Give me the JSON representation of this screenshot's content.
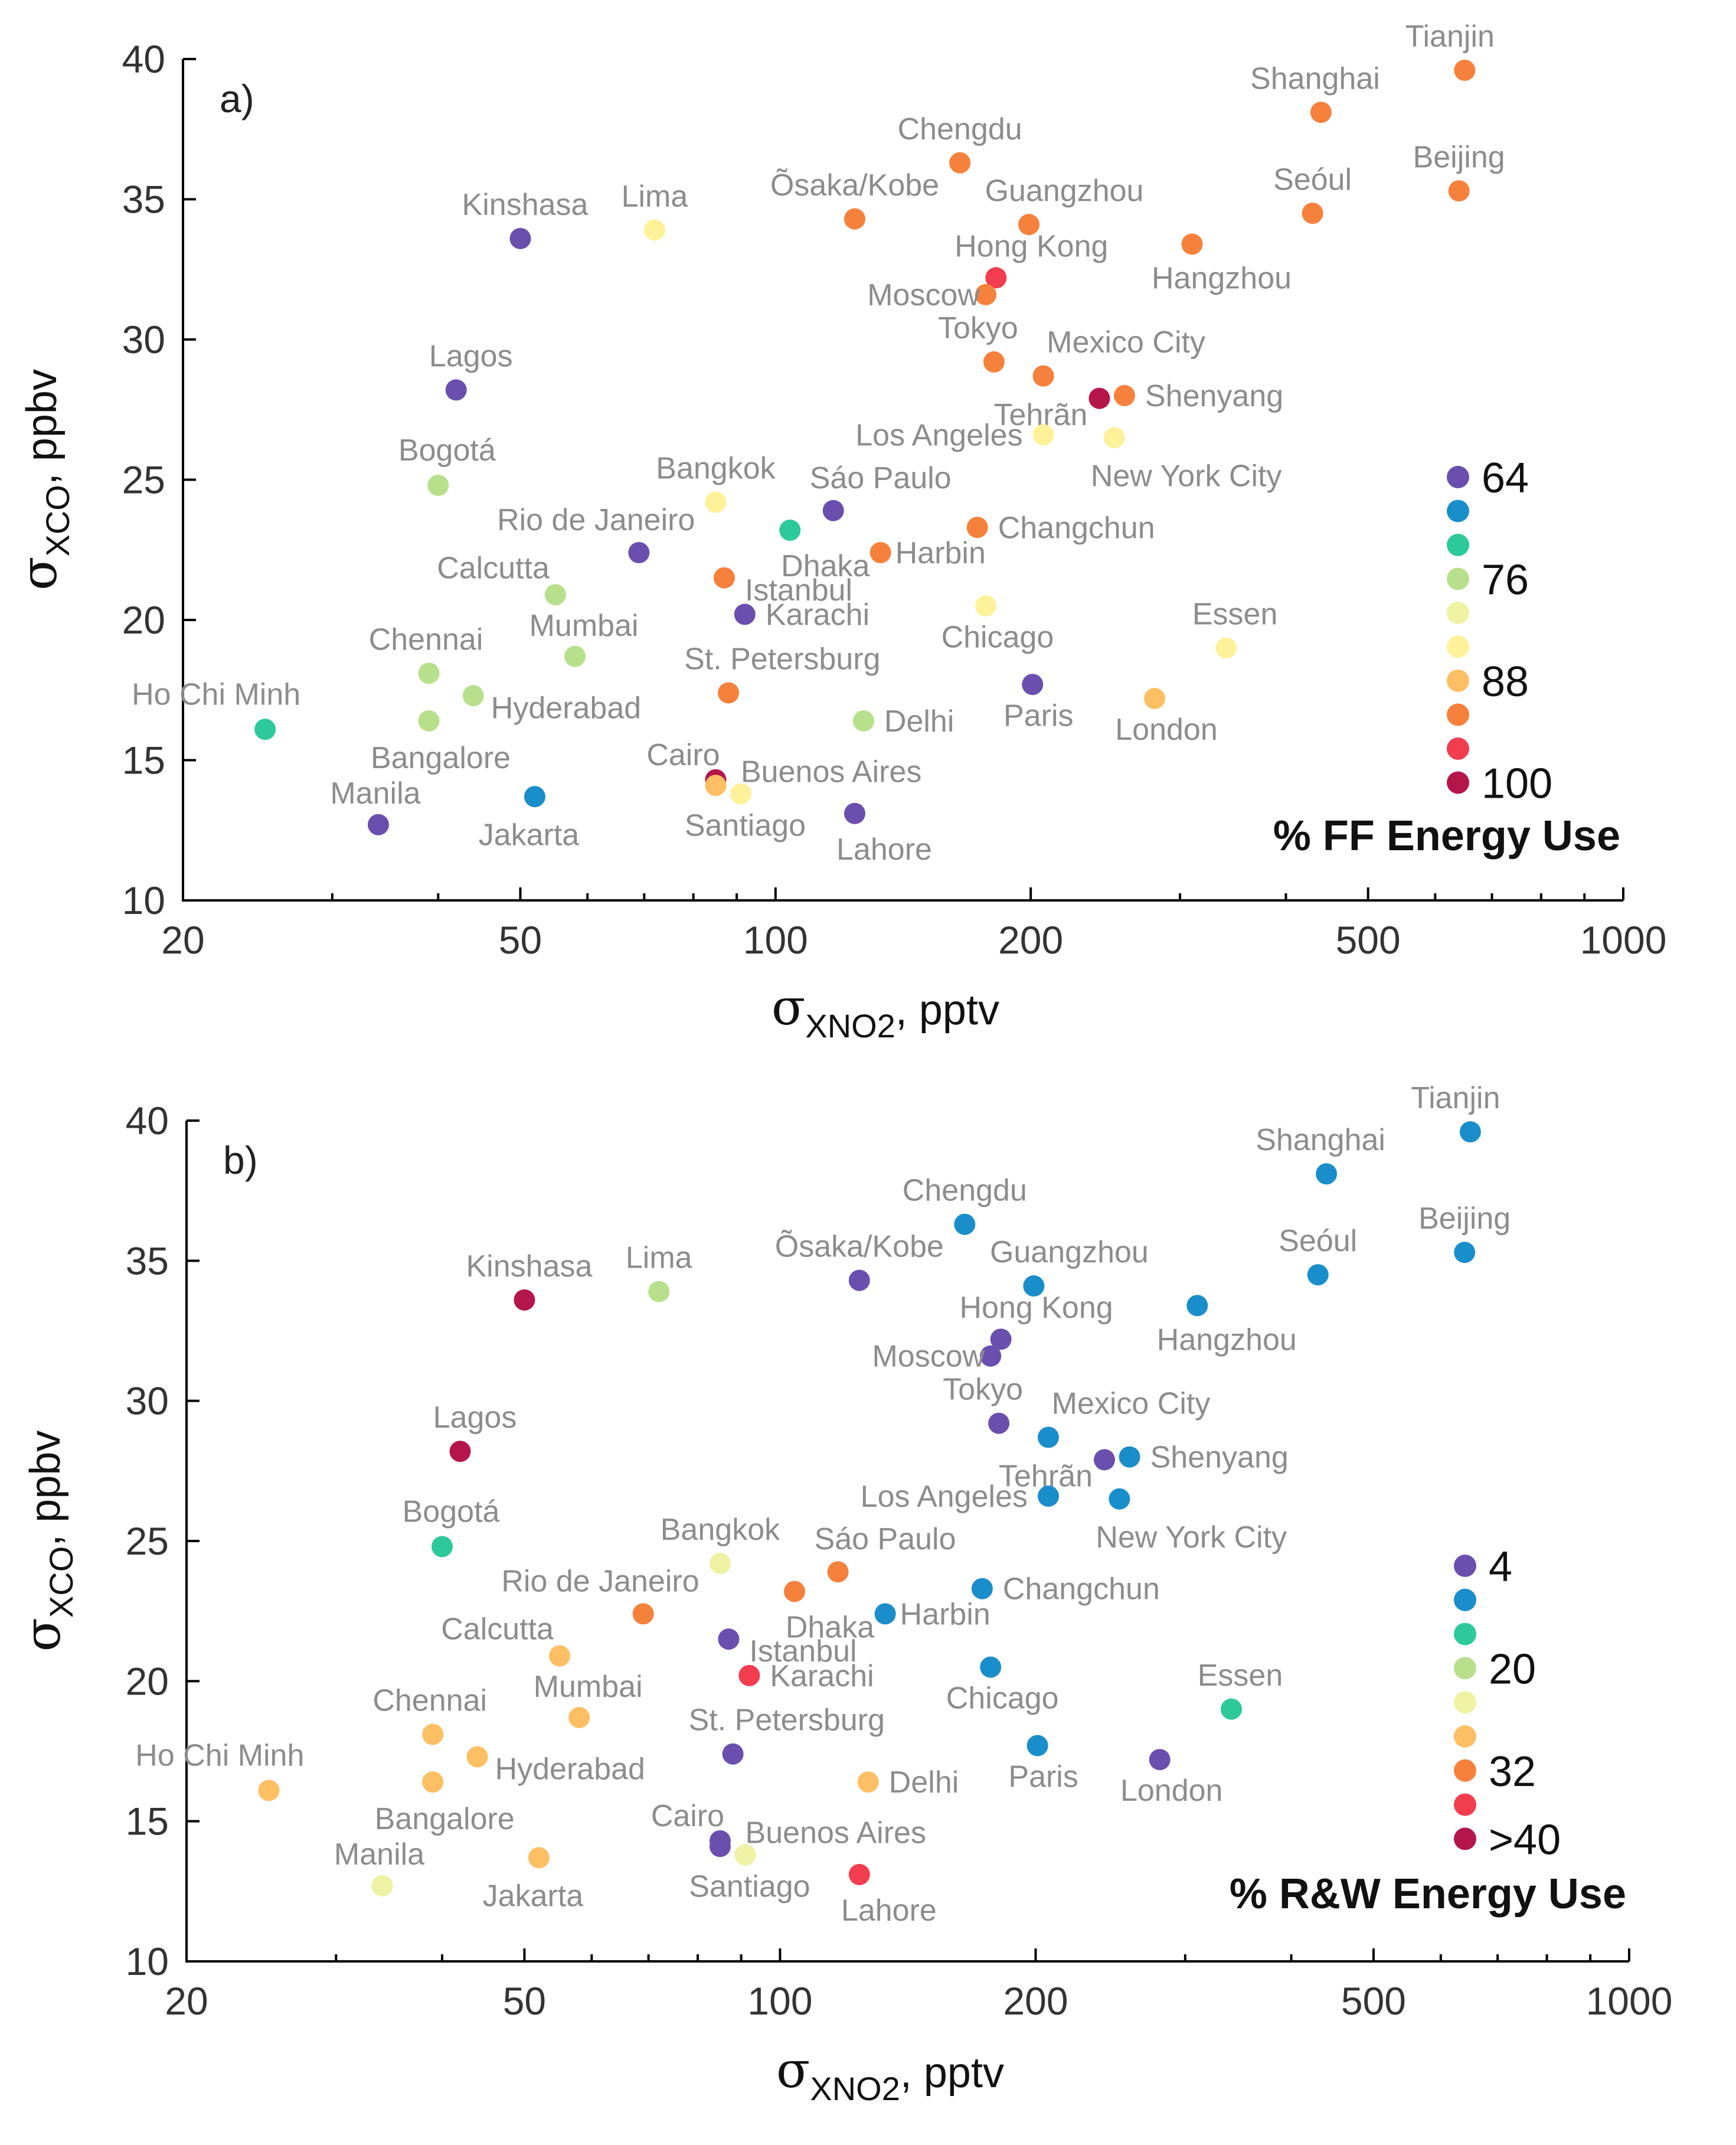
{
  "chart_data": [
    {
      "type": "scatter",
      "panel_label": "a)",
      "xlabel": {
        "symbol": "σ",
        "sub": "XNO2",
        "unit": ", pptv"
      },
      "ylabel": {
        "symbol": "σ",
        "sub": "XCO",
        "unit": ", ppbv"
      },
      "xscale": "log",
      "xlim": [
        20,
        1000
      ],
      "ylim": [
        10,
        40
      ],
      "x_ticks": [
        20,
        50,
        100,
        200,
        500,
        1000
      ],
      "y_ticks": [
        10,
        15,
        20,
        25,
        30,
        35,
        40
      ],
      "colorbar": {
        "title": "% FF Energy Use",
        "placement": "bottom-right",
        "entries": [
          {
            "label": "64",
            "color": "#6b4fae"
          },
          {
            "label": "",
            "color": "#1a8ecb"
          },
          {
            "label": "",
            "color": "#2dc99a"
          },
          {
            "label": "76",
            "color": "#b8e08c"
          },
          {
            "label": "",
            "color": "#eff2a3"
          },
          {
            "label": "",
            "color": "#fdf29a"
          },
          {
            "label": "88",
            "color": "#fdbf63"
          },
          {
            "label": "",
            "color": "#f6813c"
          },
          {
            "label": "",
            "color": "#f23d4f"
          },
          {
            "label": "100",
            "color": "#b5164a"
          }
        ]
      },
      "points": [
        {
          "city": "Tianjin",
          "x": 650,
          "y": 39.6,
          "color": "#f6813c"
        },
        {
          "city": "Shanghai",
          "x": 440,
          "y": 38.1,
          "color": "#f6813c"
        },
        {
          "city": "Chengdu",
          "x": 165,
          "y": 36.3,
          "color": "#f6813c"
        },
        {
          "city": "Beijing",
          "x": 640,
          "y": 35.3,
          "color": "#f6813c"
        },
        {
          "city": "Seóul",
          "x": 430,
          "y": 34.5,
          "color": "#f6813c"
        },
        {
          "city": "Õsaka/Kobe",
          "x": 124,
          "y": 34.3,
          "color": "#f6813c"
        },
        {
          "city": "Guangzhou",
          "x": 199,
          "y": 34.1,
          "color": "#f6813c"
        },
        {
          "city": "Kinshasa",
          "x": 50,
          "y": 33.6,
          "color": "#6b4fae"
        },
        {
          "city": "Lima",
          "x": 72,
          "y": 33.9,
          "color": "#fdf29a"
        },
        {
          "city": "Hangzhou",
          "x": 310,
          "y": 33.4,
          "color": "#f6813c"
        },
        {
          "city": "Hong Kong",
          "x": 182,
          "y": 32.2,
          "color": "#f23d4f"
        },
        {
          "city": "Moscow",
          "x": 177,
          "y": 31.6,
          "color": "#f6813c"
        },
        {
          "city": "Tokyo",
          "x": 181,
          "y": 29.2,
          "color": "#f6813c"
        },
        {
          "city": "Mexico City",
          "x": 207,
          "y": 28.7,
          "color": "#f6813c"
        },
        {
          "city": "Lagos",
          "x": 42,
          "y": 28.2,
          "color": "#6b4fae"
        },
        {
          "city": "Tehrãn",
          "x": 241,
          "y": 27.9,
          "color": "#b5164a"
        },
        {
          "city": "Shenyang",
          "x": 258,
          "y": 28.0,
          "color": "#f6813c"
        },
        {
          "city": "Los Angeles",
          "x": 207,
          "y": 26.6,
          "color": "#fdf29a"
        },
        {
          "city": "New York City",
          "x": 251,
          "y": 26.5,
          "color": "#fdf29a"
        },
        {
          "city": "Bogotá",
          "x": 40,
          "y": 24.8,
          "color": "#b8e08c"
        },
        {
          "city": "Bangkok",
          "x": 85,
          "y": 24.2,
          "color": "#fdf29a"
        },
        {
          "city": "Sáo Paulo",
          "x": 117,
          "y": 23.9,
          "color": "#6b4fae"
        },
        {
          "city": "Rio de Janeiro",
          "x": 69,
          "y": 22.4,
          "color": "#6b4fae"
        },
        {
          "city": "Dhaka",
          "x": 104,
          "y": 23.2,
          "color": "#2dc99a"
        },
        {
          "city": "Changchun",
          "x": 173,
          "y": 23.3,
          "color": "#f6813c"
        },
        {
          "city": "Harbin",
          "x": 133,
          "y": 22.4,
          "color": "#f6813c"
        },
        {
          "city": "Istanbul",
          "x": 87,
          "y": 21.5,
          "color": "#f6813c"
        },
        {
          "city": "Calcutta",
          "x": 55,
          "y": 20.9,
          "color": "#b8e08c"
        },
        {
          "city": "Chicago",
          "x": 177,
          "y": 20.5,
          "color": "#fdf29a"
        },
        {
          "city": "Karachi",
          "x": 92,
          "y": 20.2,
          "color": "#6b4fae"
        },
        {
          "city": "Mumbai",
          "x": 58,
          "y": 18.7,
          "color": "#b8e08c"
        },
        {
          "city": "Essen",
          "x": 340,
          "y": 19.0,
          "color": "#fdf29a"
        },
        {
          "city": "Chennai",
          "x": 39,
          "y": 18.1,
          "color": "#b8e08c"
        },
        {
          "city": "St. Petersburg",
          "x": 88,
          "y": 17.4,
          "color": "#f6813c"
        },
        {
          "city": "Paris",
          "x": 201,
          "y": 17.7,
          "color": "#6b4fae"
        },
        {
          "city": "Hyderabad",
          "x": 44,
          "y": 17.3,
          "color": "#b8e08c"
        },
        {
          "city": "London",
          "x": 280,
          "y": 17.2,
          "color": "#fdbf63"
        },
        {
          "city": "Delhi",
          "x": 127,
          "y": 16.4,
          "color": "#b8e08c"
        },
        {
          "city": "Ho Chi Minh",
          "x": 25,
          "y": 16.1,
          "color": "#2dc99a"
        },
        {
          "city": "Bangalore",
          "x": 39,
          "y": 16.4,
          "color": "#b8e08c"
        },
        {
          "city": "Cairo",
          "x": 85,
          "y": 14.3,
          "color": "#b5164a"
        },
        {
          "city": "Buenos Aires",
          "x": 91,
          "y": 13.8,
          "color": "#fdf29a"
        },
        {
          "city": "Santiago",
          "x": 85,
          "y": 14.1,
          "color": "#fdbf63"
        },
        {
          "city": "Jakarta",
          "x": 52,
          "y": 13.7,
          "color": "#1a8ecb"
        },
        {
          "city": "Lahore",
          "x": 124,
          "y": 13.1,
          "color": "#6b4fae"
        },
        {
          "city": "Manila",
          "x": 34,
          "y": 12.7,
          "color": "#6b4fae"
        }
      ]
    },
    {
      "type": "scatter",
      "panel_label": "b)",
      "xlabel": {
        "symbol": "σ",
        "sub": "XNO2",
        "unit": ", pptv"
      },
      "ylabel": {
        "symbol": "σ",
        "sub": "XCO",
        "unit": ", ppbv"
      },
      "xscale": "log",
      "xlim": [
        20,
        1000
      ],
      "ylim": [
        10,
        40
      ],
      "x_ticks": [
        20,
        50,
        100,
        200,
        500,
        1000
      ],
      "y_ticks": [
        10,
        15,
        20,
        25,
        30,
        35,
        40
      ],
      "colorbar": {
        "title": "% R&W Energy Use",
        "placement": "bottom-right",
        "entries": [
          {
            "label": "4",
            "color": "#6b4fae"
          },
          {
            "label": "",
            "color": "#1a8ecb"
          },
          {
            "label": "",
            "color": "#2dc99a"
          },
          {
            "label": "20",
            "color": "#b8e08c"
          },
          {
            "label": "",
            "color": "#eff2a3"
          },
          {
            "label": "",
            "color": "#fdbf63"
          },
          {
            "label": "32",
            "color": "#f6813c"
          },
          {
            "label": "",
            "color": "#f23d4f"
          },
          {
            "label": ">40",
            "color": "#b5164a"
          }
        ]
      },
      "points": [
        {
          "city": "Tianjin",
          "x": 650,
          "y": 39.6,
          "color": "#1a8ecb"
        },
        {
          "city": "Shanghai",
          "x": 440,
          "y": 38.1,
          "color": "#1a8ecb"
        },
        {
          "city": "Chengdu",
          "x": 165,
          "y": 36.3,
          "color": "#1a8ecb"
        },
        {
          "city": "Beijing",
          "x": 640,
          "y": 35.3,
          "color": "#1a8ecb"
        },
        {
          "city": "Seóul",
          "x": 430,
          "y": 34.5,
          "color": "#1a8ecb"
        },
        {
          "city": "Õsaka/Kobe",
          "x": 124,
          "y": 34.3,
          "color": "#6b4fae"
        },
        {
          "city": "Guangzhou",
          "x": 199,
          "y": 34.1,
          "color": "#1a8ecb"
        },
        {
          "city": "Kinshasa",
          "x": 50,
          "y": 33.6,
          "color": "#b5164a"
        },
        {
          "city": "Lima",
          "x": 72,
          "y": 33.9,
          "color": "#b8e08c"
        },
        {
          "city": "Hangzhou",
          "x": 310,
          "y": 33.4,
          "color": "#1a8ecb"
        },
        {
          "city": "Hong Kong",
          "x": 182,
          "y": 32.2,
          "color": "#6b4fae"
        },
        {
          "city": "Moscow",
          "x": 177,
          "y": 31.6,
          "color": "#6b4fae"
        },
        {
          "city": "Tokyo",
          "x": 181,
          "y": 29.2,
          "color": "#6b4fae"
        },
        {
          "city": "Mexico City",
          "x": 207,
          "y": 28.7,
          "color": "#1a8ecb"
        },
        {
          "city": "Lagos",
          "x": 42,
          "y": 28.2,
          "color": "#b5164a"
        },
        {
          "city": "Tehrãn",
          "x": 241,
          "y": 27.9,
          "color": "#6b4fae"
        },
        {
          "city": "Shenyang",
          "x": 258,
          "y": 28.0,
          "color": "#1a8ecb"
        },
        {
          "city": "Los Angeles",
          "x": 207,
          "y": 26.6,
          "color": "#1a8ecb"
        },
        {
          "city": "New York City",
          "x": 251,
          "y": 26.5,
          "color": "#1a8ecb"
        },
        {
          "city": "Bogotá",
          "x": 40,
          "y": 24.8,
          "color": "#2dc99a"
        },
        {
          "city": "Bangkok",
          "x": 85,
          "y": 24.2,
          "color": "#eff2a3"
        },
        {
          "city": "Sáo Paulo",
          "x": 117,
          "y": 23.9,
          "color": "#f6813c"
        },
        {
          "city": "Rio de Janeiro",
          "x": 69,
          "y": 22.4,
          "color": "#f6813c"
        },
        {
          "city": "Dhaka",
          "x": 104,
          "y": 23.2,
          "color": "#f6813c"
        },
        {
          "city": "Changchun",
          "x": 173,
          "y": 23.3,
          "color": "#1a8ecb"
        },
        {
          "city": "Harbin",
          "x": 133,
          "y": 22.4,
          "color": "#1a8ecb"
        },
        {
          "city": "Istanbul",
          "x": 87,
          "y": 21.5,
          "color": "#6b4fae"
        },
        {
          "city": "Calcutta",
          "x": 55,
          "y": 20.9,
          "color": "#fdbf63"
        },
        {
          "city": "Chicago",
          "x": 177,
          "y": 20.5,
          "color": "#1a8ecb"
        },
        {
          "city": "Karachi",
          "x": 92,
          "y": 20.2,
          "color": "#f23d4f"
        },
        {
          "city": "Mumbai",
          "x": 58,
          "y": 18.7,
          "color": "#fdbf63"
        },
        {
          "city": "Essen",
          "x": 340,
          "y": 19.0,
          "color": "#2dc99a"
        },
        {
          "city": "Chennai",
          "x": 39,
          "y": 18.1,
          "color": "#fdbf63"
        },
        {
          "city": "St. Petersburg",
          "x": 88,
          "y": 17.4,
          "color": "#6b4fae"
        },
        {
          "city": "Paris",
          "x": 201,
          "y": 17.7,
          "color": "#1a8ecb"
        },
        {
          "city": "Hyderabad",
          "x": 44,
          "y": 17.3,
          "color": "#fdbf63"
        },
        {
          "city": "London",
          "x": 280,
          "y": 17.2,
          "color": "#6b4fae"
        },
        {
          "city": "Delhi",
          "x": 127,
          "y": 16.4,
          "color": "#fdbf63"
        },
        {
          "city": "Ho Chi Minh",
          "x": 25,
          "y": 16.1,
          "color": "#fdbf63"
        },
        {
          "city": "Bangalore",
          "x": 39,
          "y": 16.4,
          "color": "#fdbf63"
        },
        {
          "city": "Cairo",
          "x": 85,
          "y": 14.3,
          "color": "#6b4fae"
        },
        {
          "city": "Buenos Aires",
          "x": 91,
          "y": 13.8,
          "color": "#eff2a3"
        },
        {
          "city": "Santiago",
          "x": 85,
          "y": 14.1,
          "color": "#6b4fae"
        },
        {
          "city": "Jakarta",
          "x": 52,
          "y": 13.7,
          "color": "#fdbf63"
        },
        {
          "city": "Lahore",
          "x": 124,
          "y": 13.1,
          "color": "#f23d4f"
        },
        {
          "city": "Manila",
          "x": 34,
          "y": 12.7,
          "color": "#eff2a3"
        }
      ]
    }
  ]
}
